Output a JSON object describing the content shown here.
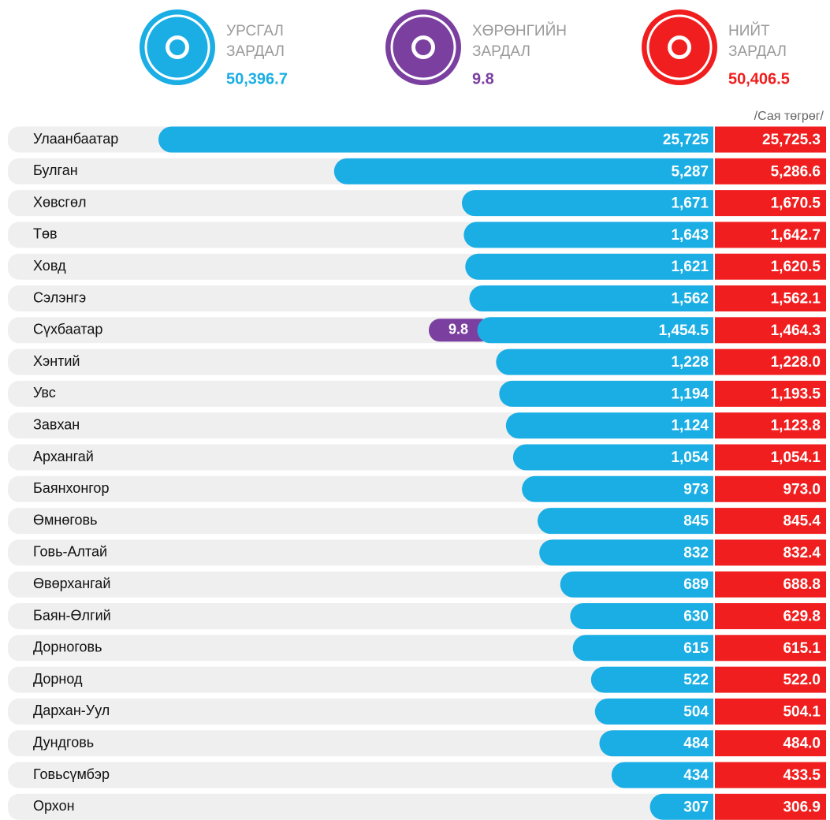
{
  "header": {
    "items": [
      {
        "label_lines": [
          "УРСГАЛ",
          "ЗАРДАЛ"
        ],
        "value": "50,396.7",
        "color": "#1aaee5"
      },
      {
        "label_lines": [
          "ХӨРӨНГИЙН",
          "ЗАРДАЛ"
        ],
        "value": "9.8",
        "color": "#7b3fa0"
      },
      {
        "label_lines": [
          "НИЙТ",
          "ЗАРДАЛ"
        ],
        "value": "50,406.5",
        "color": "#f01e1e"
      }
    ],
    "unit": "/Сая төгрөг/"
  },
  "chart_data": {
    "type": "bar",
    "orientation": "horizontal",
    "log_scale": true,
    "xlim": [
      174,
      26000
    ],
    "categories": [
      "Улаанбаатар",
      "Булган",
      "Хөвсгөл",
      "Төв",
      "Ховд",
      "Сэлэнгэ",
      "Сүхбаатар",
      "Хэнтий",
      "Увс",
      "Завхан",
      "Архангай",
      "Баянхонгор",
      "Өмнөговь",
      "Говь-Алтай",
      "Өвөрхангай",
      "Баян-Өлгий",
      "Дорноговь",
      "Дорнод",
      "Дархан-Уул",
      "Дундговь",
      "Говьсүмбэр",
      "Орхон"
    ],
    "series": [
      {
        "name": "УРСГАЛ ЗАРДАЛ",
        "color": "#1aaee5",
        "values": [
          25725,
          5287,
          1671,
          1643,
          1621,
          1562,
          1454.5,
          1228,
          1194,
          1124,
          1054,
          973,
          845,
          832,
          689,
          630,
          615,
          522,
          504,
          484,
          434,
          307
        ],
        "value_labels": [
          "25,725",
          "5,287",
          "1,671",
          "1,643",
          "1,621",
          "1,562",
          "1,454.5",
          "1,228",
          "1,194",
          "1,124",
          "1,054",
          "973",
          "845",
          "832",
          "689",
          "630",
          "615",
          "522",
          "504",
          "484",
          "434",
          "307"
        ]
      },
      {
        "name": "ХӨРӨНГИЙН ЗАРДАЛ",
        "color": "#7b3fa0",
        "values": [
          null,
          null,
          null,
          null,
          null,
          null,
          9.8,
          null,
          null,
          null,
          null,
          null,
          null,
          null,
          null,
          null,
          null,
          null,
          null,
          null,
          null,
          null
        ]
      },
      {
        "name": "НИЙТ ЗАРДАЛ",
        "color": "#f01e1e",
        "values": [
          25725.3,
          5286.6,
          1670.5,
          1642.7,
          1620.5,
          1562.1,
          1464.3,
          1228.0,
          1193.5,
          1123.8,
          1054.1,
          973.0,
          845.4,
          832.4,
          688.8,
          629.8,
          615.1,
          522.0,
          504.1,
          484.0,
          433.5,
          306.9
        ],
        "value_labels": [
          "25,725.3",
          "5,286.6",
          "1,670.5",
          "1,642.7",
          "1,620.5",
          "1,562.1",
          "1,464.3",
          "1,228.0",
          "1,193.5",
          "1,123.8",
          "1,054.1",
          "973.0",
          "845.4",
          "832.4",
          "688.8",
          "629.8",
          "615.1",
          "522.0",
          "504.1",
          "484.0",
          "433.5",
          "306.9"
        ]
      }
    ]
  }
}
